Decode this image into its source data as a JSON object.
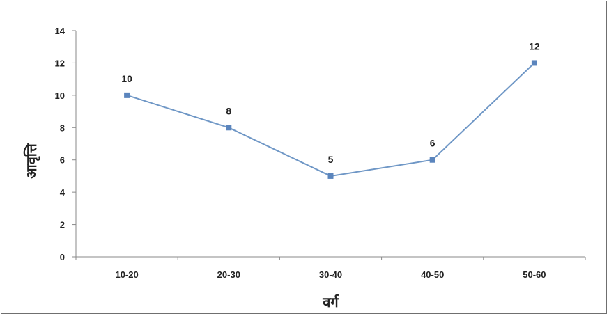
{
  "chart_data": {
    "type": "line",
    "categories": [
      "10-20",
      "20-30",
      "30-40",
      "40-50",
      "50-60"
    ],
    "values": [
      10,
      8,
      5,
      6,
      12
    ],
    "xlabel": "वर्ग",
    "ylabel": "आवृत्ति",
    "ylim": [
      0,
      14
    ],
    "yticks": [
      0,
      2,
      4,
      6,
      8,
      10,
      12,
      14
    ],
    "grid": false,
    "legend": "none",
    "line_color": "#6f97c6",
    "marker_color": "#5b85bd"
  }
}
